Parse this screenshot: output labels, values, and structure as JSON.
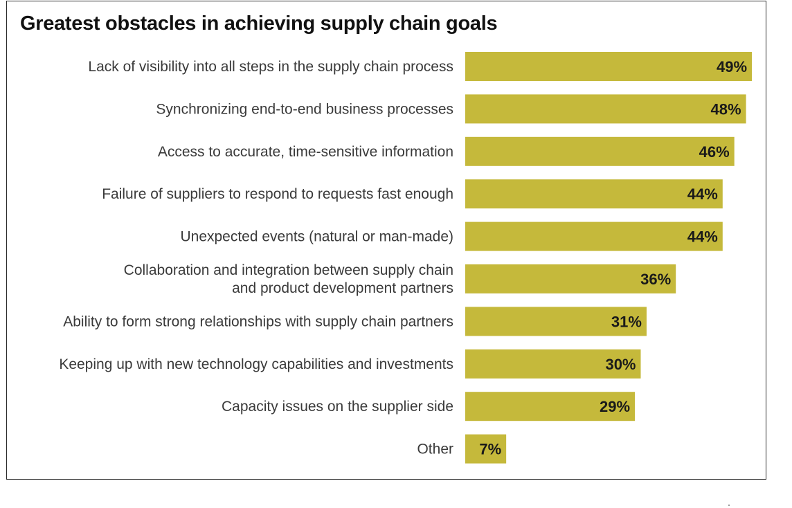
{
  "chart_data": {
    "type": "bar",
    "orientation": "horizontal",
    "title": "Greatest obstacles in achieving supply chain goals",
    "categories": [
      [
        "Lack of visibility into all steps in the supply chain process"
      ],
      [
        "Synchronizing end-to-end business processes"
      ],
      [
        "Access to accurate, time-sensitive information"
      ],
      [
        "Failure of suppliers to respond to requests fast enough"
      ],
      [
        "Unexpected events (natural or man-made)"
      ],
      [
        "Collaboration and integration between supply chain",
        "and product development partners"
      ],
      [
        "Ability to form strong relationships with supply chain partners"
      ],
      [
        "Keeping up with new technology capabilities and investments"
      ],
      [
        "Capacity issues on the supplier side"
      ],
      [
        "Other"
      ]
    ],
    "values": [
      49,
      48,
      46,
      44,
      44,
      36,
      31,
      30,
      29,
      7
    ],
    "value_labels": [
      "49%",
      "48%",
      "46%",
      "44%",
      "44%",
      "36%",
      "31%",
      "30%",
      "29%",
      "7%"
    ],
    "unit": "%",
    "grid": false,
    "legend": "none",
    "colors": {
      "bar": "#c5b93b",
      "value_text": "#1a1a1a",
      "label_text": "#3a3a3a"
    }
  }
}
